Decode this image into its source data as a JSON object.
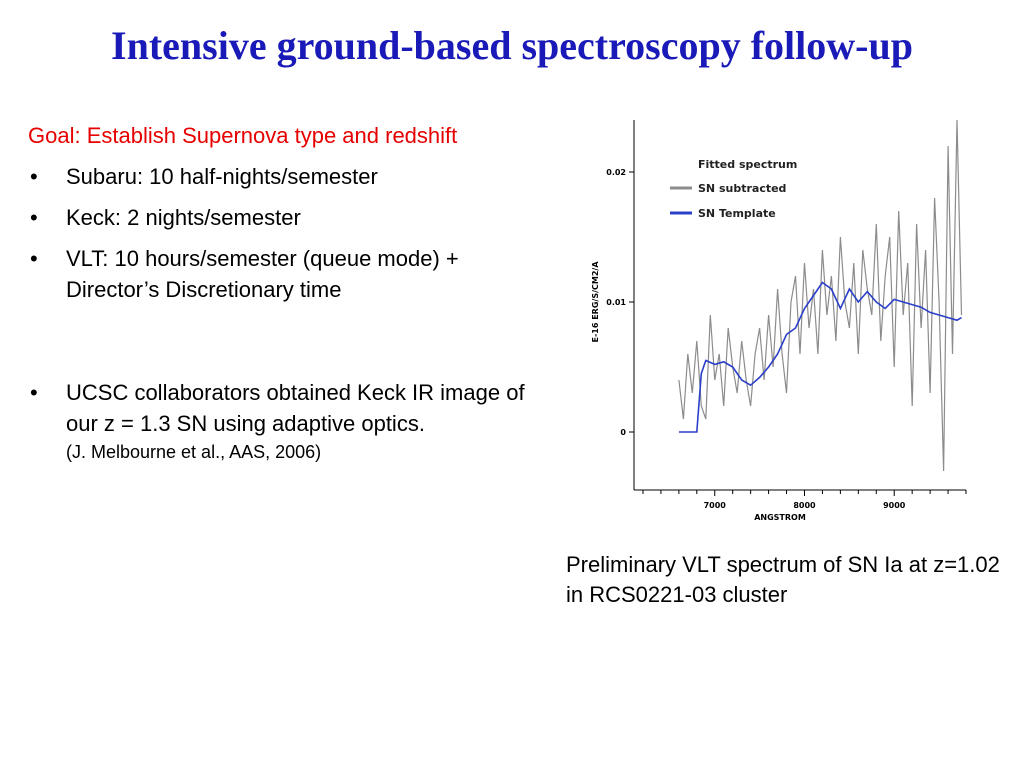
{
  "title": "Intensive ground-based spectroscopy follow-up",
  "goal": "Goal: Establish Supernova type and redshift",
  "bullets": [
    "Subaru: 10 half-nights/semester",
    "Keck: 2 nights/semester",
    "VLT:  10 hours/semester (queue mode) + Director’s Discretionary time"
  ],
  "bullet_ucsc": "UCSC collaborators obtained Keck IR image of our z = 1.3 SN using adaptive optics.",
  "bullet_ucsc_cite": "(J. Melbourne et al., AAS, 2006)",
  "bullet_symbol": "•",
  "caption": "Preliminary VLT spectrum of SN Ia at z=1.02 in RCS0221-03 cluster",
  "colors": {
    "title": "#1a1ab8",
    "goal": "#e60000",
    "subtracted": "#8c8c8c",
    "template": "#2b3fc8"
  },
  "chart_data": {
    "type": "line",
    "title": "Fitted spectrum",
    "xlabel": "ANGSTROM",
    "ylabel": "E-16 ERG/S/CM2/A",
    "xlim": [
      6100,
      9800
    ],
    "ylim": [
      -0.004,
      0.024
    ],
    "xticks": [
      7000,
      8000,
      9000
    ],
    "yticks": [
      0,
      0.01,
      0.02
    ],
    "xtick_labels": [
      "7000",
      "8000",
      "9000"
    ],
    "ytick_labels": [
      "0",
      "0.01",
      "0.02"
    ],
    "legend_position": "top-center",
    "series": [
      {
        "name": "SN subtracted",
        "x": [
          6600,
          6650,
          6700,
          6750,
          6800,
          6850,
          6900,
          6950,
          7000,
          7050,
          7100,
          7150,
          7200,
          7250,
          7300,
          7350,
          7400,
          7450,
          7500,
          7550,
          7600,
          7650,
          7700,
          7750,
          7800,
          7850,
          7900,
          7950,
          8000,
          8050,
          8100,
          8150,
          8200,
          8250,
          8300,
          8350,
          8400,
          8450,
          8500,
          8550,
          8600,
          8650,
          8700,
          8750,
          8800,
          8850,
          8900,
          8950,
          9000,
          9050,
          9100,
          9150,
          9200,
          9250,
          9300,
          9350,
          9400,
          9450,
          9500,
          9550,
          9600,
          9650,
          9700,
          9750
        ],
        "y": [
          0.004,
          0.001,
          0.006,
          0.003,
          0.007,
          0.002,
          0.001,
          0.009,
          0.004,
          0.006,
          0.002,
          0.008,
          0.005,
          0.003,
          0.007,
          0.004,
          0.002,
          0.006,
          0.008,
          0.004,
          0.009,
          0.005,
          0.011,
          0.006,
          0.003,
          0.01,
          0.012,
          0.006,
          0.013,
          0.008,
          0.011,
          0.006,
          0.014,
          0.009,
          0.012,
          0.007,
          0.015,
          0.01,
          0.008,
          0.013,
          0.006,
          0.014,
          0.011,
          0.009,
          0.016,
          0.007,
          0.012,
          0.015,
          0.005,
          0.017,
          0.009,
          0.013,
          0.002,
          0.016,
          0.008,
          0.014,
          0.003,
          0.018,
          0.01,
          -0.003,
          0.022,
          0.006,
          0.024,
          0.009
        ]
      },
      {
        "name": "SN Template",
        "x": [
          6600,
          6700,
          6800,
          6850,
          6900,
          7000,
          7100,
          7200,
          7300,
          7400,
          7500,
          7600,
          7700,
          7800,
          7900,
          8000,
          8100,
          8200,
          8300,
          8400,
          8500,
          8600,
          8700,
          8800,
          8900,
          9000,
          9100,
          9200,
          9300,
          9400,
          9500,
          9600,
          9700,
          9750
        ],
        "y": [
          0.0,
          0.0,
          0.0,
          0.0045,
          0.0055,
          0.0052,
          0.0054,
          0.005,
          0.004,
          0.0036,
          0.0042,
          0.005,
          0.006,
          0.0075,
          0.008,
          0.0095,
          0.0105,
          0.0115,
          0.011,
          0.0095,
          0.011,
          0.01,
          0.0108,
          0.01,
          0.0095,
          0.0102,
          0.01,
          0.0098,
          0.0096,
          0.0092,
          0.009,
          0.0088,
          0.0086,
          0.0088
        ]
      }
    ]
  }
}
